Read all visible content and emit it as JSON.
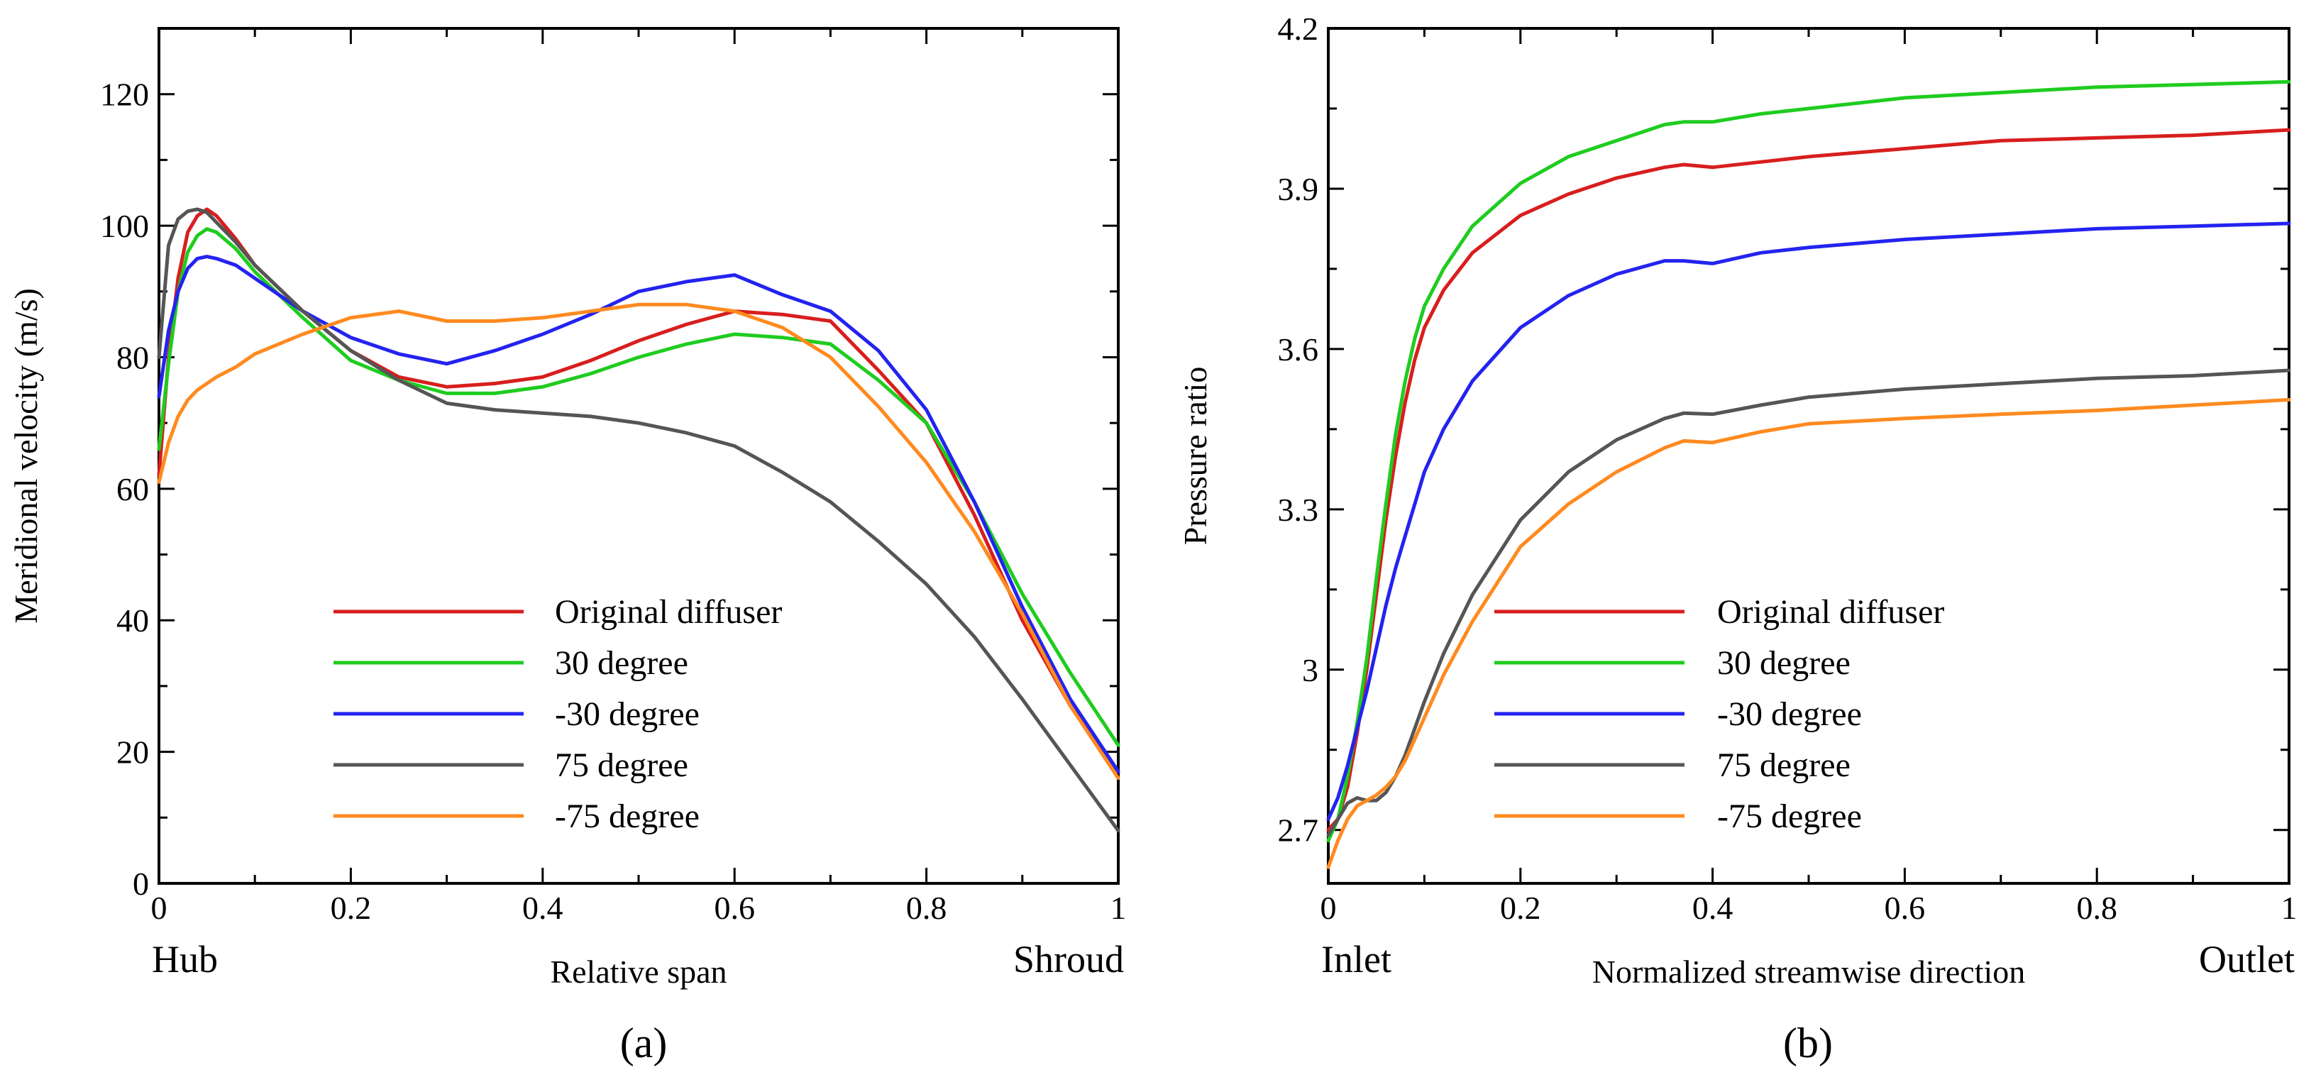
{
  "chart_data": [
    {
      "type": "line",
      "panel": "a",
      "caption": "(a)",
      "xlabel": "Relative span",
      "ylabel": "Meridional velocity (m/s)",
      "xlim": [
        0,
        1
      ],
      "ylim": [
        0,
        130
      ],
      "xticks": [
        0,
        0.2,
        0.4,
        0.6,
        0.8,
        1
      ],
      "xtick_labels": [
        "0",
        "0.2",
        "0.4",
        "0.6",
        "0.8",
        "1"
      ],
      "yticks": [
        0,
        20,
        40,
        60,
        80,
        100,
        120
      ],
      "ytick_labels": [
        "0",
        "20",
        "40",
        "60",
        "80",
        "100",
        "120"
      ],
      "x_start_label": "Hub",
      "x_end_label": "Shroud",
      "legend_position": "bottom-center",
      "series": [
        {
          "name": "Original diffuser",
          "color": "#d81e1e",
          "x": [
            0,
            0.01,
            0.02,
            0.03,
            0.04,
            0.05,
            0.06,
            0.08,
            0.1,
            0.15,
            0.2,
            0.25,
            0.3,
            0.35,
            0.4,
            0.45,
            0.5,
            0.55,
            0.6,
            0.65,
            0.7,
            0.75,
            0.8,
            0.85,
            0.9,
            0.95,
            1
          ],
          "y": [
            62,
            80,
            92,
            99,
            101.5,
            102.5,
            101.5,
            98,
            94,
            87,
            81,
            77,
            75.5,
            76,
            77,
            79.5,
            82.5,
            85,
            87,
            86.5,
            85.5,
            78,
            70,
            56,
            40,
            27,
            17
          ]
        },
        {
          "name": "30 degree",
          "color": "#1fcc1f",
          "x": [
            0,
            0.01,
            0.02,
            0.03,
            0.04,
            0.05,
            0.06,
            0.08,
            0.1,
            0.15,
            0.2,
            0.25,
            0.3,
            0.35,
            0.4,
            0.45,
            0.5,
            0.55,
            0.6,
            0.65,
            0.7,
            0.75,
            0.8,
            0.85,
            0.9,
            0.95,
            1
          ],
          "y": [
            66,
            79,
            90,
            96,
            98.5,
            99.5,
            99,
            96.5,
            93,
            86,
            79.5,
            76.5,
            74.5,
            74.5,
            75.5,
            77.5,
            80,
            82,
            83.5,
            83,
            82,
            76.5,
            70,
            58,
            44,
            32,
            21
          ]
        },
        {
          "name": "-30 degree",
          "color": "#2323f0",
          "x": [
            0,
            0.01,
            0.02,
            0.03,
            0.04,
            0.05,
            0.06,
            0.08,
            0.1,
            0.15,
            0.2,
            0.25,
            0.3,
            0.35,
            0.4,
            0.45,
            0.5,
            0.55,
            0.6,
            0.65,
            0.7,
            0.75,
            0.8,
            0.85,
            0.9,
            0.95,
            1
          ],
          "y": [
            74,
            84,
            90,
            93.5,
            95,
            95.3,
            95,
            94,
            92,
            87,
            83,
            80.5,
            79,
            81,
            83.5,
            86.5,
            90,
            91.5,
            92.5,
            89.5,
            87,
            81,
            72,
            58,
            42,
            28,
            17
          ]
        },
        {
          "name": "75 degree",
          "color": "#555555",
          "x": [
            0,
            0.01,
            0.02,
            0.03,
            0.04,
            0.05,
            0.06,
            0.08,
            0.1,
            0.15,
            0.2,
            0.25,
            0.3,
            0.35,
            0.4,
            0.45,
            0.5,
            0.55,
            0.6,
            0.65,
            0.7,
            0.75,
            0.8,
            0.85,
            0.9,
            0.95,
            1
          ],
          "y": [
            80,
            97,
            101,
            102.2,
            102.5,
            102,
            100.5,
            97.5,
            94,
            87,
            81,
            76.5,
            73,
            72,
            71.5,
            71,
            70,
            68.5,
            66.5,
            62.5,
            58,
            52,
            45.5,
            37.5,
            28,
            18,
            8
          ]
        },
        {
          "name": "-75 degree",
          "color": "#ff8a1f",
          "x": [
            0,
            0.01,
            0.02,
            0.03,
            0.04,
            0.05,
            0.06,
            0.08,
            0.1,
            0.15,
            0.2,
            0.25,
            0.3,
            0.35,
            0.4,
            0.45,
            0.5,
            0.55,
            0.6,
            0.65,
            0.7,
            0.75,
            0.8,
            0.85,
            0.9,
            0.95,
            1
          ],
          "y": [
            61,
            67,
            71,
            73.5,
            75,
            76,
            77,
            78.5,
            80.5,
            83.5,
            86,
            87,
            85.5,
            85.5,
            86,
            87,
            88,
            88,
            87,
            84.5,
            80,
            72.5,
            64,
            53.5,
            41,
            27,
            16
          ]
        }
      ]
    },
    {
      "type": "line",
      "panel": "b",
      "caption": "(b)",
      "xlabel": "Normalized streamwise direction",
      "ylabel": "Pressure ratio",
      "xlim": [
        0,
        1
      ],
      "ylim": [
        2.6,
        4.2
      ],
      "xticks": [
        0,
        0.2,
        0.4,
        0.6,
        0.8,
        1
      ],
      "xtick_labels": [
        "0",
        "0.2",
        "0.4",
        "0.6",
        "0.8",
        "1"
      ],
      "yticks": [
        2.7,
        3.0,
        3.3,
        3.6,
        3.9,
        4.2
      ],
      "ytick_labels": [
        "2.7",
        "3",
        "3.3",
        "3.6",
        "3.9",
        "4.2"
      ],
      "x_start_label": "Inlet",
      "x_end_label": "Outlet",
      "legend_position": "bottom-center",
      "series": [
        {
          "name": "Original diffuser",
          "color": "#d81e1e",
          "x": [
            0,
            0.01,
            0.02,
            0.03,
            0.04,
            0.05,
            0.06,
            0.07,
            0.08,
            0.09,
            0.1,
            0.12,
            0.15,
            0.2,
            0.25,
            0.3,
            0.35,
            0.37,
            0.4,
            0.45,
            0.5,
            0.6,
            0.7,
            0.8,
            0.9,
            1
          ],
          "y": [
            2.7,
            2.72,
            2.78,
            2.88,
            3.0,
            3.14,
            3.28,
            3.4,
            3.5,
            3.58,
            3.64,
            3.71,
            3.78,
            3.85,
            3.89,
            3.92,
            3.94,
            3.945,
            3.94,
            3.95,
            3.96,
            3.975,
            3.99,
            3.995,
            4.0,
            4.01
          ]
        },
        {
          "name": "30 degree",
          "color": "#1fcc1f",
          "x": [
            0,
            0.01,
            0.02,
            0.03,
            0.04,
            0.05,
            0.06,
            0.07,
            0.08,
            0.09,
            0.1,
            0.12,
            0.15,
            0.2,
            0.25,
            0.3,
            0.35,
            0.37,
            0.4,
            0.45,
            0.5,
            0.6,
            0.7,
            0.8,
            0.9,
            1
          ],
          "y": [
            2.68,
            2.72,
            2.8,
            2.9,
            3.02,
            3.17,
            3.31,
            3.44,
            3.54,
            3.62,
            3.68,
            3.75,
            3.83,
            3.91,
            3.96,
            3.99,
            4.02,
            4.025,
            4.025,
            4.04,
            4.05,
            4.07,
            4.08,
            4.09,
            4.095,
            4.1
          ]
        },
        {
          "name": "-30 degree",
          "color": "#2323f0",
          "x": [
            0,
            0.01,
            0.02,
            0.03,
            0.04,
            0.05,
            0.06,
            0.07,
            0.08,
            0.09,
            0.1,
            0.12,
            0.15,
            0.2,
            0.25,
            0.3,
            0.35,
            0.37,
            0.4,
            0.45,
            0.5,
            0.6,
            0.7,
            0.8,
            0.9,
            1
          ],
          "y": [
            2.72,
            2.76,
            2.82,
            2.89,
            2.96,
            3.04,
            3.12,
            3.19,
            3.25,
            3.31,
            3.37,
            3.45,
            3.54,
            3.64,
            3.7,
            3.74,
            3.765,
            3.765,
            3.76,
            3.78,
            3.79,
            3.805,
            3.815,
            3.825,
            3.83,
            3.835
          ]
        },
        {
          "name": "75 degree",
          "color": "#555555",
          "x": [
            0,
            0.01,
            0.02,
            0.03,
            0.04,
            0.05,
            0.06,
            0.07,
            0.08,
            0.09,
            0.1,
            0.12,
            0.15,
            0.2,
            0.25,
            0.3,
            0.35,
            0.37,
            0.4,
            0.45,
            0.5,
            0.6,
            0.7,
            0.8,
            0.9,
            1
          ],
          "y": [
            2.69,
            2.72,
            2.75,
            2.76,
            2.755,
            2.755,
            2.77,
            2.8,
            2.84,
            2.89,
            2.94,
            3.03,
            3.14,
            3.28,
            3.37,
            3.43,
            3.47,
            3.48,
            3.478,
            3.495,
            3.51,
            3.525,
            3.535,
            3.545,
            3.55,
            3.56
          ]
        },
        {
          "name": "-75 degree",
          "color": "#ff8a1f",
          "x": [
            0,
            0.01,
            0.02,
            0.03,
            0.04,
            0.05,
            0.06,
            0.07,
            0.08,
            0.09,
            0.1,
            0.12,
            0.15,
            0.2,
            0.25,
            0.3,
            0.35,
            0.37,
            0.4,
            0.45,
            0.5,
            0.6,
            0.7,
            0.8,
            0.9,
            1
          ],
          "y": [
            2.63,
            2.68,
            2.72,
            2.745,
            2.755,
            2.765,
            2.78,
            2.8,
            2.83,
            2.87,
            2.91,
            2.99,
            3.09,
            3.23,
            3.31,
            3.37,
            3.415,
            3.428,
            3.425,
            3.445,
            3.46,
            3.47,
            3.478,
            3.485,
            3.495,
            3.505
          ]
        }
      ]
    }
  ]
}
